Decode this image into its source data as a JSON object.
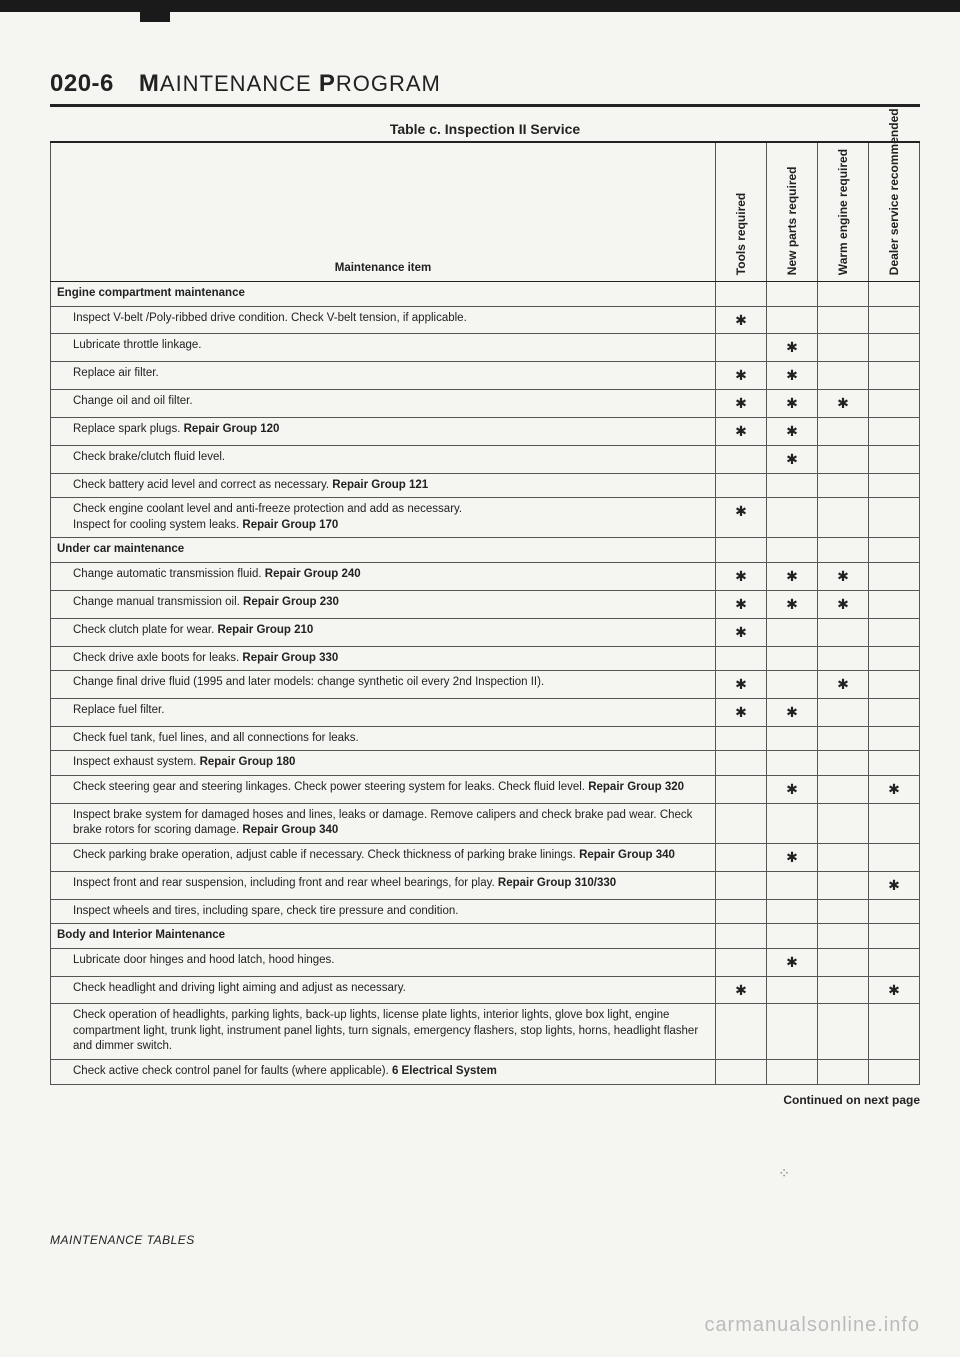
{
  "page": {
    "number": "020-6",
    "title_main": "M",
    "title_rest1": "AINTENANCE ",
    "title_main2": "P",
    "title_rest2": "ROGRAM",
    "table_title": "Table c. Inspection II Service",
    "continued": "Continued on next page",
    "footer": "MAINTENANCE TABLES",
    "watermark": "carmanualsonline.info"
  },
  "columns": {
    "item": "Maintenance item",
    "tools": "Tools required",
    "parts": "New parts required",
    "warm": "Warm engine required",
    "dealer": "Dealer service recommended"
  },
  "mark_glyph": "✱",
  "rows": [
    {
      "section": true,
      "label": "Engine compartment maintenance"
    },
    {
      "label": "Inspect V-belt /Poly-ribbed drive condition. Check V-belt tension, if applicable.",
      "tools": true
    },
    {
      "label": "Lubricate throttle linkage.",
      "parts": true
    },
    {
      "label": "Replace air filter.",
      "tools": true,
      "parts": true
    },
    {
      "label": "Change oil and oil filter.",
      "tools": true,
      "parts": true,
      "warm": true
    },
    {
      "label_html": "Replace spark plugs. <b>Repair Group 120</b>",
      "tools": true,
      "parts": true
    },
    {
      "label": "Check brake/clutch fluid level.",
      "parts": true
    },
    {
      "label_html": "Check battery acid level and correct as necessary. <b>Repair Group 121</b>"
    },
    {
      "label_html": "Check engine coolant level and anti-freeze protection and add as necessary.<br>Inspect for cooling system leaks. <b>Repair Group 170</b>",
      "tools": true
    },
    {
      "section": true,
      "label": "Under car maintenance"
    },
    {
      "label_html": "Change automatic transmission fluid. <b>Repair Group 240</b>",
      "tools": true,
      "parts": true,
      "warm": true
    },
    {
      "label_html": "Change manual transmission oil. <b>Repair Group 230</b>",
      "tools": true,
      "parts": true,
      "warm": true
    },
    {
      "label_html": "Check clutch plate for wear. <b>Repair Group 210</b>",
      "tools": true
    },
    {
      "label_html": "Check drive axle boots for leaks. <b>Repair Group 330</b>"
    },
    {
      "label": "Change final drive fluid (1995 and later models: change synthetic oil every 2nd Inspection II).",
      "tools": true,
      "warm": true
    },
    {
      "label": "Replace fuel filter.",
      "tools": true,
      "parts": true
    },
    {
      "label": "Check fuel tank, fuel lines, and all connections for leaks."
    },
    {
      "label_html": "Inspect exhaust system. <b>Repair Group 180</b>"
    },
    {
      "label_html": "Check steering gear and steering linkages. Check power steering system for leaks. Check fluid level. <b>Repair Group 320</b>",
      "parts": true,
      "dealer": true
    },
    {
      "label_html": "Inspect brake system for damaged hoses and lines, leaks or damage. Remove calipers and check brake pad wear. Check brake rotors for scoring damage. <b>Repair Group 340</b>"
    },
    {
      "label_html": "Check parking brake operation, adjust cable if necessary. Check thickness of parking brake linings. <b>Repair Group 340</b>",
      "parts": true
    },
    {
      "label_html": "Inspect front and rear suspension, including front and rear wheel bearings, for play. <b>Repair Group 310/330</b>",
      "dealer": true
    },
    {
      "label": "Inspect wheels and tires, including spare, check tire pressure and condition."
    },
    {
      "section": true,
      "label": "Body and Interior Maintenance"
    },
    {
      "label": "Lubricate door hinges and hood latch, hood hinges.",
      "parts": true
    },
    {
      "label": "Check headlight and driving light aiming and adjust as necessary.",
      "tools": true,
      "dealer": true
    },
    {
      "label": "Check operation of headlights, parking lights, back-up lights, license plate lights, interior lights, glove box light, engine compartment light, trunk light, instrument panel lights, turn signals, emergency flashers, stop lights, horns, headlight flasher and dimmer switch."
    },
    {
      "label_html": "Check active check control panel for faults (where applicable). <b>6 Electrical System</b>"
    }
  ]
}
